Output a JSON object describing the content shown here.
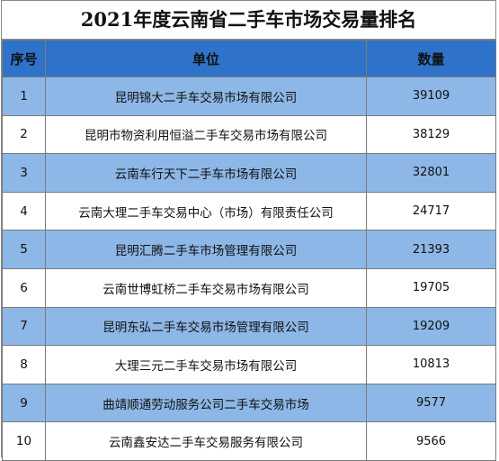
{
  "title": "2021年度云南省二手车市场交易量排名",
  "headers": {
    "index": "序号",
    "company": "单位",
    "quantity": "数量"
  },
  "rows": [
    {
      "index": "1",
      "company": "昆明锦大二手车交易市场有限公司",
      "quantity": "39109"
    },
    {
      "index": "2",
      "company": "昆明市物资利用恒溢二手车交易市场有限公司",
      "quantity": "38129"
    },
    {
      "index": "3",
      "company": "云南车行天下二手车市场有限公司",
      "quantity": "32801"
    },
    {
      "index": "4",
      "company": "云南大理二手车交易中心（市场）有限责任公司",
      "quantity": "24717"
    },
    {
      "index": "5",
      "company": "昆明汇腾二手车市场管理有限公司",
      "quantity": "21393"
    },
    {
      "index": "6",
      "company": "云南世博虹桥二手车交易市场有限公司",
      "quantity": "19705"
    },
    {
      "index": "7",
      "company": "昆明东弘二手车交易市场管理有限公司",
      "quantity": "19209"
    },
    {
      "index": "8",
      "company": "大理三元二手车交易市场有限公司",
      "quantity": "10813"
    },
    {
      "index": "9",
      "company": "曲靖顺通劳动服务公司二手车交易市场",
      "quantity": "9577"
    },
    {
      "index": "10",
      "company": "云南鑫安达二手车交易服务有限公司",
      "quantity": "9566"
    }
  ],
  "colors": {
    "header_bg": "#2e73c9",
    "odd_row_bg": "#8db7e6",
    "even_row_bg": "#ffffff"
  }
}
